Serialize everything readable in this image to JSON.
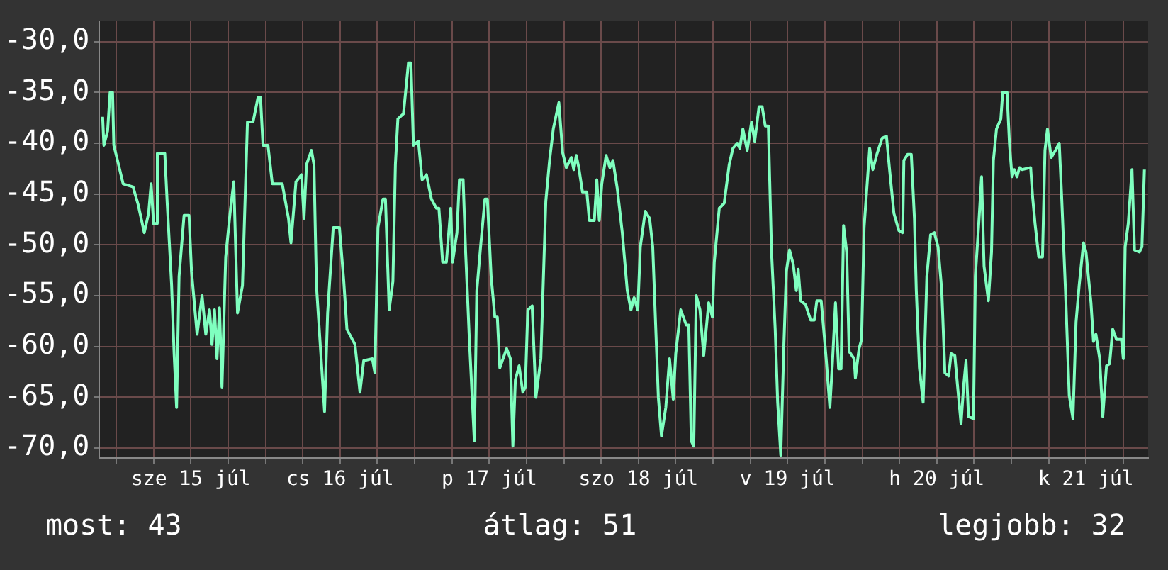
{
  "chart_data": {
    "type": "line",
    "annotations": [
      "most: 43",
      "átlag: 51",
      "legjobb: 32"
    ],
    "xlim": [
      "--07-14T21:18",
      "--07-21T22:00"
    ],
    "ylim": [
      -71,
      -28
    ],
    "xticks": [
      {
        "value": "--07-15T00:00",
        "label": null
      },
      {
        "value": "--07-15T06:00",
        "label": null
      },
      {
        "value": "--07-15T12:00",
        "label": "sze 15 júl"
      },
      {
        "value": "--07-15T18:00",
        "label": null
      },
      {
        "value": "--07-16T00:00",
        "label": null
      },
      {
        "value": "--07-16T06:00",
        "label": null
      },
      {
        "value": "--07-16T12:00",
        "label": "cs 16 júl"
      },
      {
        "value": "--07-16T18:00",
        "label": null
      },
      {
        "value": "--07-17T00:00",
        "label": null
      },
      {
        "value": "--07-17T06:00",
        "label": null
      },
      {
        "value": "--07-17T12:00",
        "label": "p 17 júl"
      },
      {
        "value": "--07-17T18:00",
        "label": null
      },
      {
        "value": "--07-18T00:00",
        "label": null
      },
      {
        "value": "--07-18T06:00",
        "label": null
      },
      {
        "value": "--07-18T12:00",
        "label": "szo 18 júl"
      },
      {
        "value": "--07-18T18:00",
        "label": null
      },
      {
        "value": "--07-19T00:00",
        "label": null
      },
      {
        "value": "--07-19T06:00",
        "label": null
      },
      {
        "value": "--07-19T12:00",
        "label": "v 19 júl"
      },
      {
        "value": "--07-19T18:00",
        "label": null
      },
      {
        "value": "--07-20T00:00",
        "label": null
      },
      {
        "value": "--07-20T06:00",
        "label": null
      },
      {
        "value": "--07-20T12:00",
        "label": "h 20 júl"
      },
      {
        "value": "--07-20T18:00",
        "label": null
      },
      {
        "value": "--07-21T00:00",
        "label": null
      },
      {
        "value": "--07-21T06:00",
        "label": null
      },
      {
        "value": "--07-21T12:00",
        "label": "k 21 júl"
      },
      {
        "value": "--07-21T18:00",
        "label": null
      }
    ],
    "yticks": [
      {
        "value": -70,
        "label": "-70,0"
      },
      {
        "value": -65,
        "label": "-65,0"
      },
      {
        "value": -60,
        "label": "-60,0"
      },
      {
        "value": -55,
        "label": "-55,0"
      },
      {
        "value": -50,
        "label": "-50,0"
      },
      {
        "value": -45,
        "label": "-45,0"
      },
      {
        "value": -40,
        "label": "-40,0"
      },
      {
        "value": -35,
        "label": "-35,0"
      },
      {
        "value": -30,
        "label": "-30,0"
      }
    ],
    "grid": true,
    "legend": false,
    "series": [
      {
        "color": "#7fffbf",
        "x": [
          "--07-14T21:48",
          "--07-14T22:00",
          "--07-14T22:36",
          "--07-14T23:00",
          "--07-14T23:24",
          "--07-14T23:36",
          "--07-15T00:12",
          "--07-15T01:06",
          "--07-15T02:42",
          "--07-15T03:30",
          "--07-15T04:30",
          "--07-15T05:12",
          "--07-15T05:36",
          "--07-15T06:00",
          "--07-15T06:24",
          "--07-15T06:36",
          "--07-15T07:48",
          "--07-15T08:12",
          "--07-15T08:54",
          "--07-15T09:18",
          "--07-15T09:42",
          "--07-15T10:06",
          "--07-15T10:54",
          "--07-15T11:42",
          "--07-15T12:06",
          "--07-15T13:00",
          "--07-15T13:48",
          "--07-15T14:24",
          "--07-15T15:00",
          "--07-15T15:24",
          "--07-15T15:48",
          "--07-15T16:12",
          "--07-15T16:36",
          "--07-15T17:00",
          "--07-15T17:36",
          "--07-15T18:18",
          "--07-15T18:54",
          "--07-15T19:30",
          "--07-15T20:18",
          "--07-15T21:06",
          "--07-15T22:00",
          "--07-15T22:48",
          "--07-15T23:12",
          "--07-15T23:36",
          "--07-16T00:24",
          "--07-16T01:06",
          "--07-16T02:42",
          "--07-16T03:42",
          "--07-16T04:06",
          "--07-16T04:54",
          "--07-16T05:48",
          "--07-16T06:12",
          "--07-16T06:36",
          "--07-16T07:24",
          "--07-16T07:48",
          "--07-16T08:12",
          "--07-16T09:30",
          "--07-16T10:00",
          "--07-16T10:54",
          "--07-16T11:54",
          "--07-16T12:36",
          "--07-16T13:06",
          "--07-16T14:24",
          "--07-16T15:12",
          "--07-16T15:48",
          "--07-16T17:12",
          "--07-16T17:36",
          "--07-16T18:06",
          "--07-16T18:54",
          "--07-16T19:18",
          "--07-16T19:54",
          "--07-16T20:30",
          "--07-16T20:54",
          "--07-16T21:18",
          "--07-16T22:12",
          "--07-16T23:00",
          "--07-16T23:24",
          "--07-16T23:48",
          "--07-17T00:36",
          "--07-17T01:12",
          "--07-17T01:54",
          "--07-17T02:42",
          "--07-17T03:30",
          "--07-17T03:54",
          "--07-17T04:30",
          "--07-17T05:06",
          "--07-17T05:48",
          "--07-17T06:06",
          "--07-17T06:48",
          "--07-17T07:12",
          "--07-17T07:48",
          "--07-17T08:12",
          "--07-17T08:48",
          "--07-17T09:36",
          "--07-17T10:00",
          "--07-17T10:36",
          "--07-17T11:18",
          "--07-17T11:42",
          "--07-17T12:18",
          "--07-17T12:54",
          "--07-17T13:18",
          "--07-17T13:42",
          "--07-17T14:06",
          "--07-17T14:48",
          "--07-17T15:24",
          "--07-17T15:48",
          "--07-17T16:12",
          "--07-17T16:48",
          "--07-17T17:24",
          "--07-17T17:48",
          "--07-17T18:12",
          "--07-17T18:54",
          "--07-17T19:30",
          "--07-17T20:18",
          "--07-17T21:06",
          "--07-17T21:42",
          "--07-17T22:18",
          "--07-17T23:12",
          "--07-17T23:48",
          "--07-18T00:24",
          "--07-18T01:12",
          "--07-18T01:36",
          "--07-18T02:00",
          "--07-18T02:24",
          "--07-18T03:00",
          "--07-18T03:42",
          "--07-18T04:06",
          "--07-18T04:54",
          "--07-18T05:18",
          "--07-18T05:42",
          "--07-18T06:06",
          "--07-18T06:48",
          "--07-18T07:24",
          "--07-18T07:54",
          "--07-18T08:36",
          "--07-18T09:24",
          "--07-18T10:12",
          "--07-18T10:48",
          "--07-18T11:18",
          "--07-18T11:54",
          "--07-18T12:18",
          "--07-18T13:06",
          "--07-18T13:48",
          "--07-18T14:18",
          "--07-18T15:12",
          "--07-18T15:42",
          "--07-18T16:24",
          "--07-18T17:00",
          "--07-18T17:36",
          "--07-18T18:00",
          "--07-18T18:48",
          "--07-18T19:42",
          "--07-18T20:06",
          "--07-18T20:30",
          "--07-18T20:54",
          "--07-18T21:18",
          "--07-18T21:54",
          "--07-18T22:30",
          "--07-18T23:18",
          "--07-18T23:54",
          "--07-19T00:12",
          "--07-19T01:00",
          "--07-19T01:48",
          "--07-19T02:36",
          "--07-19T03:12",
          "--07-19T03:54",
          "--07-19T04:18",
          "--07-19T04:48",
          "--07-19T05:30",
          "--07-19T06:12",
          "--07-19T06:42",
          "--07-19T07:24",
          "--07-19T07:54",
          "--07-19T08:24",
          "--07-19T08:54",
          "--07-19T09:24",
          "--07-19T10:00",
          "--07-19T10:24",
          "--07-19T10:54",
          "--07-19T11:24",
          "--07-19T11:48",
          "--07-19T12:18",
          "--07-19T12:54",
          "--07-19T13:24",
          "--07-19T13:42",
          "--07-19T14:06",
          "--07-19T14:54",
          "--07-19T15:42",
          "--07-19T16:18",
          "--07-19T16:42",
          "--07-19T17:24",
          "--07-19T17:48",
          "--07-19T18:12",
          "--07-19T18:48",
          "--07-19T19:12",
          "--07-19T19:42",
          "--07-19T20:12",
          "--07-19T20:36",
          "--07-19T21:00",
          "--07-19T21:30",
          "--07-19T21:54",
          "--07-19T22:42",
          "--07-19T22:54",
          "--07-19T23:30",
          "--07-19T23:54",
          "--07-20T00:18",
          "--07-20T00:42",
          "--07-20T01:12",
          "--07-20T01:42",
          "--07-20T02:24",
          "--07-20T03:12",
          "--07-20T03:54",
          "--07-20T04:24",
          "--07-20T05:06",
          "--07-20T05:54",
          "--07-20T06:30",
          "--07-20T06:42",
          "--07-20T07:18",
          "--07-20T07:54",
          "--07-20T08:24",
          "--07-20T08:42",
          "--07-20T09:12",
          "--07-20T09:48",
          "--07-20T10:24",
          "--07-20T11:00",
          "--07-20T11:36",
          "--07-20T12:12",
          "--07-20T12:48",
          "--07-20T13:18",
          "--07-20T13:54",
          "--07-20T14:18",
          "--07-20T14:54",
          "--07-20T15:30",
          "--07-20T15:54",
          "--07-20T16:18",
          "--07-20T16:42",
          "--07-20T17:06",
          "--07-20T17:54",
          "--07-20T18:12",
          "--07-20T18:48",
          "--07-20T19:12",
          "--07-20T19:36",
          "--07-20T20:18",
          "--07-20T20:48",
          "--07-20T21:06",
          "--07-20T21:36",
          "--07-20T22:18",
          "--07-20T22:36",
          "--07-20T23:18",
          "--07-20T23:42",
          "--07-21T00:06",
          "--07-21T00:30",
          "--07-21T00:54",
          "--07-21T01:18",
          "--07-21T01:42",
          "--07-21T03:06",
          "--07-21T03:24",
          "--07-21T03:48",
          "--07-21T04:24",
          "--07-21T05:00",
          "--07-21T05:24",
          "--07-21T05:48",
          "--07-21T06:24",
          "--07-21T07:06",
          "--07-21T07:42",
          "--07-21T08:06",
          "--07-21T08:42",
          "--07-21T09:18",
          "--07-21T09:54",
          "--07-21T10:24",
          "--07-21T10:54",
          "--07-21T11:36",
          "--07-21T12:00",
          "--07-21T12:48",
          "--07-21T13:12",
          "--07-21T13:36",
          "--07-21T14:12",
          "--07-21T14:42",
          "--07-21T15:18",
          "--07-21T15:48",
          "--07-21T16:18",
          "--07-21T16:54",
          "--07-21T17:42",
          "--07-21T18:00",
          "--07-21T18:18",
          "--07-21T18:48",
          "--07-21T19:24",
          "--07-21T19:48",
          "--07-21T20:36",
          "--07-21T21:00",
          "--07-21T21:24"
        ],
        "values": [
          -37.4,
          -40.2,
          -38.8,
          -35.0,
          -35.0,
          -40.2,
          -41.7,
          -44.0,
          -44.3,
          -46.0,
          -48.8,
          -46.9,
          -44.0,
          -47.9,
          -47.9,
          -41.0,
          -41.0,
          -46.0,
          -54.0,
          -60.7,
          -66.0,
          -53.1,
          -47.1,
          -47.1,
          -52.6,
          -58.8,
          -55.0,
          -58.8,
          -56.4,
          -59.8,
          -56.4,
          -61.2,
          -56.2,
          -64.0,
          -51.2,
          -46.9,
          -43.8,
          -56.7,
          -54.0,
          -37.9,
          -37.9,
          -35.5,
          -35.5,
          -40.2,
          -40.2,
          -44.0,
          -44.0,
          -47.4,
          -49.8,
          -43.8,
          -43.1,
          -47.4,
          -42.1,
          -40.7,
          -42.1,
          -54.0,
          -66.4,
          -56.7,
          -48.3,
          -48.3,
          -53.6,
          -58.3,
          -59.8,
          -64.5,
          -61.4,
          -61.2,
          -62.6,
          -48.3,
          -45.5,
          -45.5,
          -56.4,
          -53.6,
          -42.1,
          -37.6,
          -37.1,
          -32.1,
          -32.1,
          -40.2,
          -39.8,
          -43.6,
          -43.1,
          -45.5,
          -46.4,
          -46.4,
          -51.7,
          -51.7,
          -46.4,
          -51.7,
          -48.8,
          -43.6,
          -43.6,
          -50.7,
          -59.3,
          -69.3,
          -54.5,
          -50.2,
          -45.5,
          -45.5,
          -53.1,
          -57.1,
          -57.1,
          -62.1,
          -61.4,
          -60.2,
          -61.2,
          -69.8,
          -63.3,
          -61.9,
          -64.5,
          -64.0,
          -56.4,
          -56.0,
          -65.0,
          -61.2,
          -45.7,
          -41.7,
          -38.6,
          -36.0,
          -40.9,
          -42.4,
          -41.4,
          -42.6,
          -41.2,
          -42.4,
          -44.8,
          -44.8,
          -47.6,
          -47.6,
          -43.6,
          -47.6,
          -44.0,
          -41.2,
          -42.4,
          -41.7,
          -44.5,
          -48.8,
          -54.5,
          -56.4,
          -55.2,
          -56.4,
          -50.2,
          -46.7,
          -47.4,
          -50.2,
          -65.0,
          -68.8,
          -66.0,
          -61.2,
          -65.2,
          -60.7,
          -56.4,
          -57.9,
          -57.9,
          -69.3,
          -69.8,
          -55.0,
          -56.4,
          -60.9,
          -55.7,
          -57.1,
          -51.7,
          -46.4,
          -45.9,
          -42.1,
          -40.5,
          -40.0,
          -40.5,
          -38.6,
          -40.7,
          -37.9,
          -39.8,
          -36.4,
          -36.4,
          -38.3,
          -38.3,
          -50.5,
          -58.3,
          -65.5,
          -70.7,
          -59.8,
          -52.6,
          -50.5,
          -51.9,
          -54.5,
          -52.4,
          -55.5,
          -55.9,
          -57.4,
          -57.4,
          -55.5,
          -55.5,
          -58.3,
          -61.2,
          -66.0,
          -61.7,
          -55.7,
          -62.2,
          -62.2,
          -48.1,
          -50.7,
          -60.5,
          -61.2,
          -63.1,
          -60.2,
          -59.3,
          -48.3,
          -44.8,
          -40.5,
          -42.6,
          -41.0,
          -39.5,
          -39.3,
          -42.6,
          -46.9,
          -48.6,
          -48.8,
          -41.7,
          -41.1,
          -41.1,
          -47.4,
          -54.5,
          -62.1,
          -65.5,
          -53.1,
          -49.0,
          -48.8,
          -50.2,
          -54.5,
          -62.6,
          -62.9,
          -60.7,
          -60.9,
          -65.0,
          -67.6,
          -64.0,
          -61.4,
          -66.9,
          -67.1,
          -53.1,
          -47.4,
          -43.3,
          -52.1,
          -55.5,
          -50.7,
          -41.7,
          -38.6,
          -37.6,
          -35.0,
          -35.0,
          -40.2,
          -43.3,
          -42.6,
          -43.3,
          -42.4,
          -42.6,
          -42.4,
          -45.2,
          -47.9,
          -51.2,
          -51.2,
          -40.7,
          -38.6,
          -41.4,
          -40.7,
          -40.0,
          -45.5,
          -54.5,
          -64.8,
          -67.1,
          -57.6,
          -54.0,
          -49.8,
          -50.7,
          -55.7,
          -59.5,
          -58.8,
          -61.2,
          -66.9,
          -61.9,
          -61.7,
          -58.3,
          -59.3,
          -59.3,
          -61.2,
          -50.2,
          -47.9,
          -42.6,
          -50.5,
          -50.7,
          -50.2,
          -42.6
        ]
      }
    ]
  }
}
